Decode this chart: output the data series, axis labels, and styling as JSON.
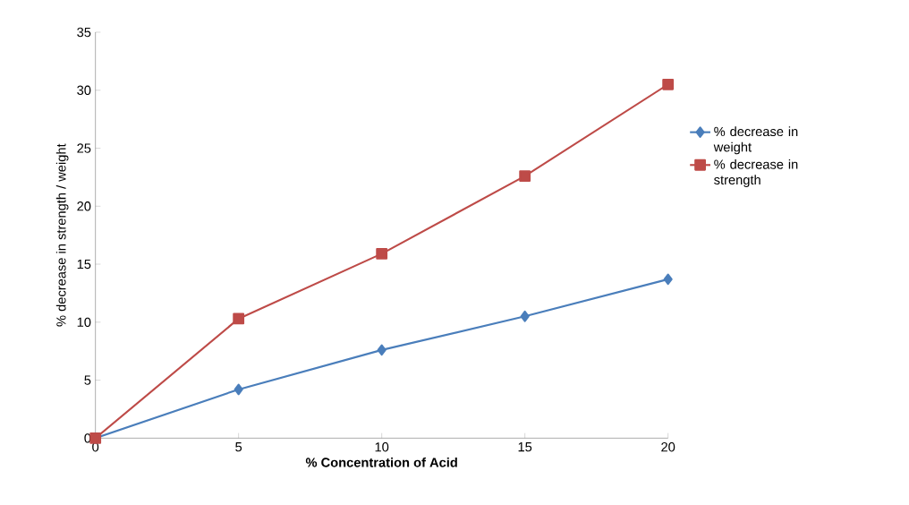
{
  "chart_data": {
    "type": "line",
    "xlabel": "% Concentration of Acid",
    "ylabel": "% decrease in strength / weight",
    "categories": [
      "0",
      "5",
      "10",
      "15",
      "20"
    ],
    "ylim": [
      0,
      35
    ],
    "yticks": [
      0,
      5,
      10,
      15,
      20,
      25,
      30,
      35
    ],
    "legend": "right",
    "grid": false,
    "line_style": "solid",
    "series": [
      {
        "name": "% decrease in weight",
        "color": "#4a7ebb",
        "marker": "diamond",
        "values": [
          0,
          4.2,
          7.6,
          10.5,
          13.7
        ]
      },
      {
        "name": "% decrease in strength",
        "color": "#be4b48",
        "marker": "square",
        "values": [
          0,
          10.3,
          15.9,
          22.6,
          30.5
        ]
      }
    ]
  }
}
